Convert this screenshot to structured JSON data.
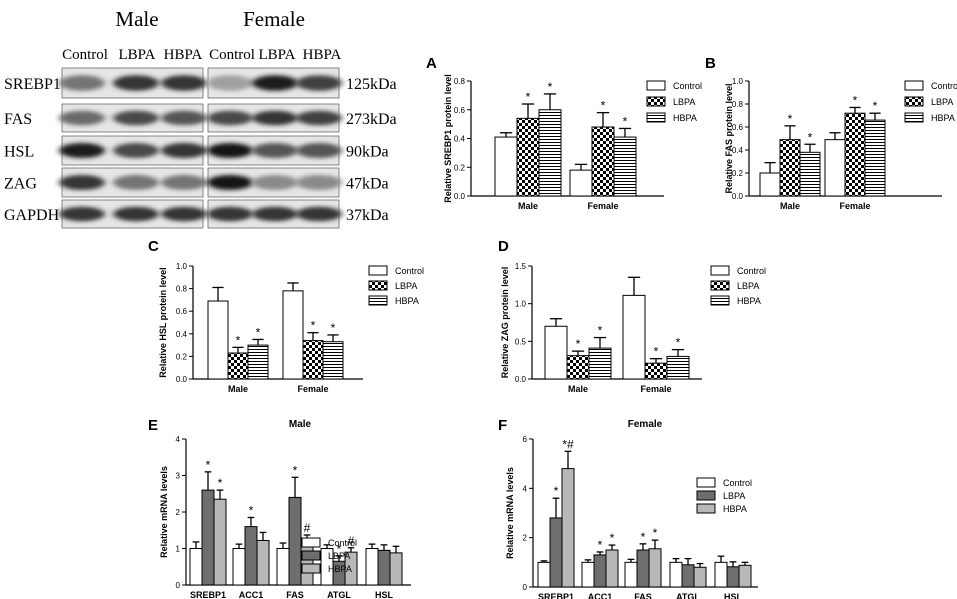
{
  "blot": {
    "group_labels": [
      "Male",
      "Female"
    ],
    "lane_labels": [
      "Control",
      "LBPA",
      "HBPA",
      "Control",
      "LBPA",
      "HBPA"
    ],
    "proteins": [
      {
        "name": "SREBP1",
        "size": "125kDa",
        "intensity": [
          0.55,
          0.85,
          0.85,
          0.35,
          0.95,
          0.8
        ]
      },
      {
        "name": "FAS",
        "size": "273kDa",
        "intensity": [
          0.6,
          0.75,
          0.7,
          0.75,
          0.85,
          0.8
        ]
      },
      {
        "name": "HSL",
        "size": "90kDa",
        "intensity": [
          0.95,
          0.75,
          0.85,
          0.98,
          0.7,
          0.7
        ]
      },
      {
        "name": "ZAG",
        "size": "47kDa",
        "intensity": [
          0.85,
          0.55,
          0.55,
          0.98,
          0.45,
          0.45
        ]
      },
      {
        "name": "GAPDH",
        "size": "37kDa",
        "intensity": [
          0.85,
          0.85,
          0.85,
          0.85,
          0.85,
          0.85
        ]
      }
    ]
  },
  "patterns": {
    "Control": "white",
    "LBPA": "checker",
    "HBPA": "hlines"
  },
  "chart_data": [
    {
      "id": "A",
      "type": "bar",
      "title": "",
      "ylabel": "Relative SREBP1 protein level",
      "ylim": [
        0,
        0.8
      ],
      "ystep": 0.2,
      "decimals": 1,
      "categories": [
        "Male",
        "Female"
      ],
      "series": [
        {
          "name": "Control",
          "values": [
            0.41,
            0.18
          ],
          "errors": [
            0.03,
            0.04
          ],
          "marks": [
            "",
            ""
          ]
        },
        {
          "name": "LBPA",
          "values": [
            0.54,
            0.48
          ],
          "errors": [
            0.1,
            0.1
          ],
          "marks": [
            "*",
            "*"
          ]
        },
        {
          "name": "HBPA",
          "values": [
            0.6,
            0.41
          ],
          "errors": [
            0.11,
            0.06
          ],
          "marks": [
            "*",
            "*"
          ]
        }
      ]
    },
    {
      "id": "B",
      "type": "bar",
      "title": "",
      "ylabel": "Relative FAS protein level",
      "ylim": [
        0,
        1.0
      ],
      "ystep": 0.2,
      "decimals": 1,
      "categories": [
        "Male",
        "Female"
      ],
      "series": [
        {
          "name": "Control",
          "values": [
            0.2,
            0.49
          ],
          "errors": [
            0.09,
            0.06
          ],
          "marks": [
            "",
            ""
          ]
        },
        {
          "name": "LBPA",
          "values": [
            0.49,
            0.72
          ],
          "errors": [
            0.12,
            0.05
          ],
          "marks": [
            "*",
            "*"
          ]
        },
        {
          "name": "HBPA",
          "values": [
            0.38,
            0.66
          ],
          "errors": [
            0.07,
            0.06
          ],
          "marks": [
            "*",
            "*"
          ]
        }
      ]
    },
    {
      "id": "C",
      "type": "bar",
      "title": "",
      "ylabel": "Relative HSL protein level",
      "ylim": [
        0,
        1.0
      ],
      "ystep": 0.2,
      "decimals": 1,
      "categories": [
        "Male",
        "Female"
      ],
      "series": [
        {
          "name": "Control",
          "values": [
            0.69,
            0.78
          ],
          "errors": [
            0.12,
            0.07
          ],
          "marks": [
            "",
            ""
          ]
        },
        {
          "name": "LBPA",
          "values": [
            0.23,
            0.34
          ],
          "errors": [
            0.05,
            0.07
          ],
          "marks": [
            "*",
            "*"
          ]
        },
        {
          "name": "HBPA",
          "values": [
            0.3,
            0.33
          ],
          "errors": [
            0.05,
            0.06
          ],
          "marks": [
            "*",
            "*"
          ]
        }
      ]
    },
    {
      "id": "D",
      "type": "bar",
      "title": "",
      "ylabel": "Relative ZAG protein level",
      "ylim": [
        0,
        1.5
      ],
      "ystep": 0.5,
      "decimals": 1,
      "categories": [
        "Male",
        "Female"
      ],
      "series": [
        {
          "name": "Control",
          "values": [
            0.7,
            1.11
          ],
          "errors": [
            0.1,
            0.24
          ],
          "marks": [
            "",
            ""
          ]
        },
        {
          "name": "LBPA",
          "values": [
            0.31,
            0.21
          ],
          "errors": [
            0.06,
            0.06
          ],
          "marks": [
            "*",
            "*"
          ]
        },
        {
          "name": "HBPA",
          "values": [
            0.41,
            0.3
          ],
          "errors": [
            0.14,
            0.09
          ],
          "marks": [
            "*",
            "*"
          ]
        }
      ]
    },
    {
      "id": "E",
      "type": "bar",
      "title": "Male",
      "ylabel": "Relative mRNA levels",
      "ylim": [
        0,
        4
      ],
      "ystep": 1,
      "decimals": 0,
      "categories": [
        "SREBP1",
        "ACC1",
        "FAS",
        "ATGL",
        "HSL"
      ],
      "series": [
        {
          "name": "Control",
          "values": [
            1.0,
            1.0,
            1.0,
            1.0,
            1.0
          ],
          "errors": [
            0.18,
            0.12,
            0.15,
            0.1,
            0.12
          ],
          "marks": [
            "",
            "",
            "",
            "",
            ""
          ]
        },
        {
          "name": "LBPA",
          "values": [
            2.6,
            1.6,
            2.4,
            0.65,
            0.95
          ],
          "errors": [
            0.5,
            0.25,
            0.55,
            0.15,
            0.15
          ],
          "marks": [
            "*",
            "*",
            "*",
            "*",
            ""
          ]
        },
        {
          "name": "HBPA",
          "values": [
            2.35,
            1.22,
            1.17,
            0.9,
            0.88
          ],
          "errors": [
            0.25,
            0.22,
            0.2,
            0.12,
            0.18
          ],
          "marks": [
            "*",
            "",
            "#",
            "#",
            ""
          ]
        }
      ]
    },
    {
      "id": "F",
      "type": "bar",
      "title": "Female",
      "ylabel": "Relative mRNA levels",
      "ylim": [
        0,
        6
      ],
      "ystep": 2,
      "decimals": 0,
      "categories": [
        "SREBP1",
        "ACC1",
        "FAS",
        "ATGL",
        "HSL"
      ],
      "series": [
        {
          "name": "Control",
          "values": [
            1.0,
            1.0,
            1.0,
            1.0,
            1.0
          ],
          "errors": [
            0.06,
            0.1,
            0.12,
            0.15,
            0.25
          ],
          "marks": [
            "",
            "",
            "",
            "",
            ""
          ]
        },
        {
          "name": "LBPA",
          "values": [
            2.8,
            1.3,
            1.5,
            0.9,
            0.82
          ],
          "errors": [
            0.8,
            0.12,
            0.25,
            0.25,
            0.2
          ],
          "marks": [
            "*",
            "*",
            "*",
            "",
            ""
          ]
        },
        {
          "name": "HBPA",
          "values": [
            4.8,
            1.5,
            1.55,
            0.8,
            0.88
          ],
          "errors": [
            0.7,
            0.2,
            0.35,
            0.15,
            0.12
          ],
          "marks": [
            "*#",
            "*",
            "*",
            "",
            ""
          ]
        }
      ]
    }
  ]
}
